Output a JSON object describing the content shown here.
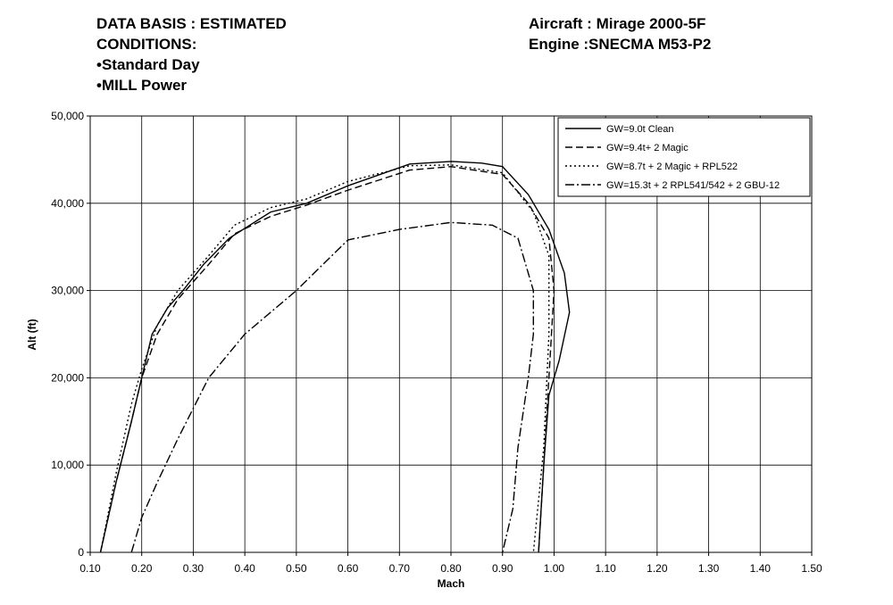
{
  "header": {
    "left": [
      "DATA BASIS : ESTIMATED",
      "CONDITIONS:",
      "•Standard Day",
      "•MILL Power"
    ],
    "right": [
      "Aircraft : Mirage 2000-5F",
      "Engine :SNECMA M53-P2"
    ]
  },
  "chart_data": {
    "type": "line",
    "xlabel": "Mach",
    "ylabel": "Alt (ft)",
    "xlim": [
      0.1,
      1.5
    ],
    "ylim": [
      0,
      50000
    ],
    "xticks": [
      {
        "value": 0.1,
        "label": "0.10"
      },
      {
        "value": 0.2,
        "label": "0.20"
      },
      {
        "value": 0.3,
        "label": "0.30"
      },
      {
        "value": 0.4,
        "label": "0.40"
      },
      {
        "value": 0.5,
        "label": "0.50"
      },
      {
        "value": 0.6,
        "label": "0.60"
      },
      {
        "value": 0.7,
        "label": "0.70"
      },
      {
        "value": 0.8,
        "label": "0.80"
      },
      {
        "value": 0.9,
        "label": "0.90"
      },
      {
        "value": 1.0,
        "label": "1.00"
      },
      {
        "value": 1.1,
        "label": "1.10"
      },
      {
        "value": 1.2,
        "label": "1.20"
      },
      {
        "value": 1.3,
        "label": "1.30"
      },
      {
        "value": 1.4,
        "label": "1.40"
      },
      {
        "value": 1.5,
        "label": "1.50"
      }
    ],
    "yticks": [
      0,
      {
        "value": 10000,
        "label": "10,000"
      },
      {
        "value": 20000,
        "label": "20,000"
      },
      {
        "value": 30000,
        "label": "30,000"
      },
      {
        "value": 40000,
        "label": "40,000"
      },
      {
        "value": 50000,
        "label": "50,000"
      }
    ],
    "grid": true,
    "legend": "upper right",
    "series": [
      {
        "name": "GW=9.0t Clean",
        "color": "#000000",
        "dash": "solid",
        "x": [
          0.12,
          0.15,
          0.18,
          0.2,
          0.22,
          0.25,
          0.28,
          0.32,
          0.37,
          0.45,
          0.52,
          0.6,
          0.72,
          0.8,
          0.86,
          0.9,
          0.95,
          0.99,
          1.02,
          1.03,
          1.01,
          0.99,
          0.98,
          0.97
        ],
        "values": [
          0,
          8000,
          15000,
          20000,
          25000,
          28000,
          30000,
          33000,
          36000,
          39000,
          40000,
          42000,
          44500,
          44800,
          44600,
          44200,
          41000,
          37000,
          32000,
          27500,
          22000,
          18000,
          10000,
          0
        ]
      },
      {
        "name": "GW=9.4t+ 2 Magic",
        "color": "#000000",
        "dash": "dashed",
        "x": [
          0.12,
          0.15,
          0.18,
          0.2,
          0.23,
          0.27,
          0.33,
          0.38,
          0.45,
          0.52,
          0.6,
          0.72,
          0.8,
          0.9,
          0.95,
          0.99,
          1.0,
          0.99,
          0.98,
          0.97
        ],
        "values": [
          0,
          8000,
          15000,
          20000,
          25000,
          29000,
          33000,
          36500,
          38500,
          39800,
          41500,
          43800,
          44200,
          43300,
          40000,
          36000,
          30000,
          20000,
          10000,
          0
        ]
      },
      {
        "name": "GW=8.7t + 2 Magic + RPL522",
        "color": "#000000",
        "dash": "dotted",
        "x": [
          0.12,
          0.15,
          0.18,
          0.2,
          0.23,
          0.27,
          0.33,
          0.38,
          0.45,
          0.52,
          0.6,
          0.72,
          0.8,
          0.9,
          0.96,
          0.99,
          0.99,
          0.98,
          0.96
        ],
        "values": [
          0,
          9000,
          17000,
          21000,
          26000,
          30000,
          34000,
          37500,
          39500,
          40500,
          42500,
          44300,
          44400,
          43500,
          39000,
          34000,
          25000,
          12000,
          0
        ]
      },
      {
        "name": "GW=15.3t + 2 RPL541/542 + 2 GBU-12",
        "color": "#000000",
        "dash": "dashdot",
        "x": [
          0.18,
          0.2,
          0.23,
          0.27,
          0.33,
          0.4,
          0.5,
          0.6,
          0.7,
          0.8,
          0.88,
          0.93,
          0.96,
          0.96,
          0.95,
          0.93,
          0.92,
          0.9
        ],
        "values": [
          0,
          4000,
          8000,
          13000,
          20000,
          25000,
          30000,
          35800,
          37000,
          37800,
          37500,
          36000,
          30000,
          25000,
          20000,
          12000,
          5000,
          0
        ]
      }
    ]
  }
}
